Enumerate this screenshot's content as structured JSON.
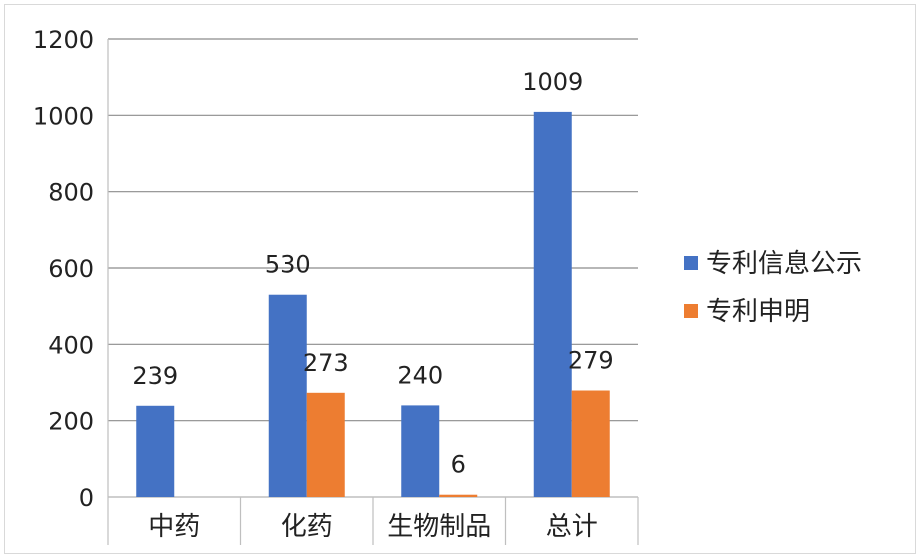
{
  "chart_data": {
    "type": "bar",
    "categories": [
      "中药",
      "化药",
      "生物制品",
      "总计"
    ],
    "series": [
      {
        "name": "专利信息公示",
        "color": "#4472C4",
        "values": [
          239,
          530,
          240,
          1009
        ],
        "labels": [
          "239",
          "530",
          "240",
          "1009"
        ]
      },
      {
        "name": "专利申明",
        "color": "#ED7D31",
        "values": [
          0,
          273,
          6,
          279
        ],
        "labels": [
          "",
          "273",
          "6",
          "279"
        ]
      }
    ],
    "y_ticks": [
      "0",
      "200",
      "400",
      "600",
      "800",
      "1000",
      "1200"
    ],
    "ylim": [
      0,
      1200
    ],
    "grid": true,
    "legend": "right"
  }
}
